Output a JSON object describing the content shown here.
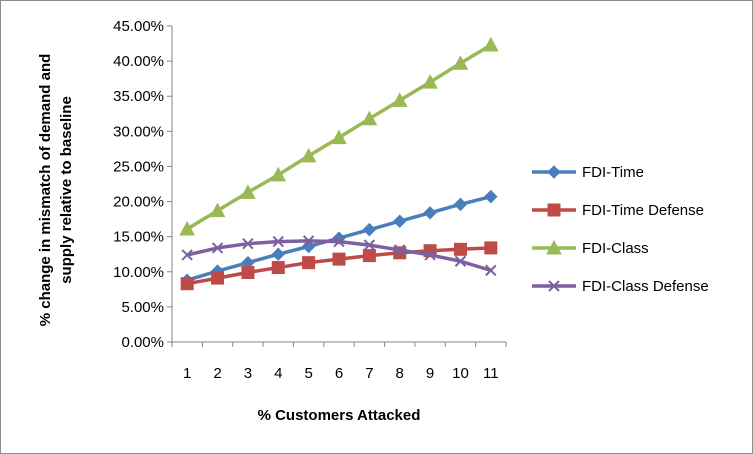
{
  "chart_data": {
    "type": "line",
    "title": "",
    "xlabel": "% Customers Attacked",
    "ylabel_lines": [
      "% change in mismatch of demand and",
      "supply relative to baseline"
    ],
    "categories": [
      "1",
      "2",
      "3",
      "4",
      "5",
      "6",
      "7",
      "8",
      "9",
      "10",
      "11"
    ],
    "y_ticks": [
      "0.00%",
      "5.00%",
      "10.00%",
      "15.00%",
      "20.00%",
      "25.00%",
      "30.00%",
      "35.00%",
      "40.00%",
      "45.00%"
    ],
    "ylim": [
      0,
      45
    ],
    "grid": false,
    "legend_position": "right",
    "series": [
      {
        "name": "FDI-Time",
        "color": "#4a7ebb",
        "marker": "diamond",
        "values": [
          8.8,
          10.1,
          11.3,
          12.5,
          13.6,
          14.8,
          16.0,
          17.2,
          18.4,
          19.6,
          20.7
        ]
      },
      {
        "name": "FDI-Time Defense",
        "color": "#be4b48",
        "marker": "square",
        "values": [
          8.3,
          9.1,
          9.9,
          10.6,
          11.3,
          11.8,
          12.3,
          12.7,
          13.0,
          13.2,
          13.4
        ]
      },
      {
        "name": "FDI-Class",
        "color": "#98b954",
        "marker": "triangle",
        "values": [
          16.1,
          18.7,
          21.3,
          23.8,
          26.5,
          29.1,
          31.8,
          34.4,
          37.0,
          39.7,
          42.3
        ]
      },
      {
        "name": "FDI-Class Defense",
        "color": "#7d60a0",
        "marker": "x",
        "values": [
          12.4,
          13.4,
          14.0,
          14.3,
          14.4,
          14.3,
          13.8,
          13.1,
          12.4,
          11.5,
          10.2
        ]
      }
    ]
  }
}
